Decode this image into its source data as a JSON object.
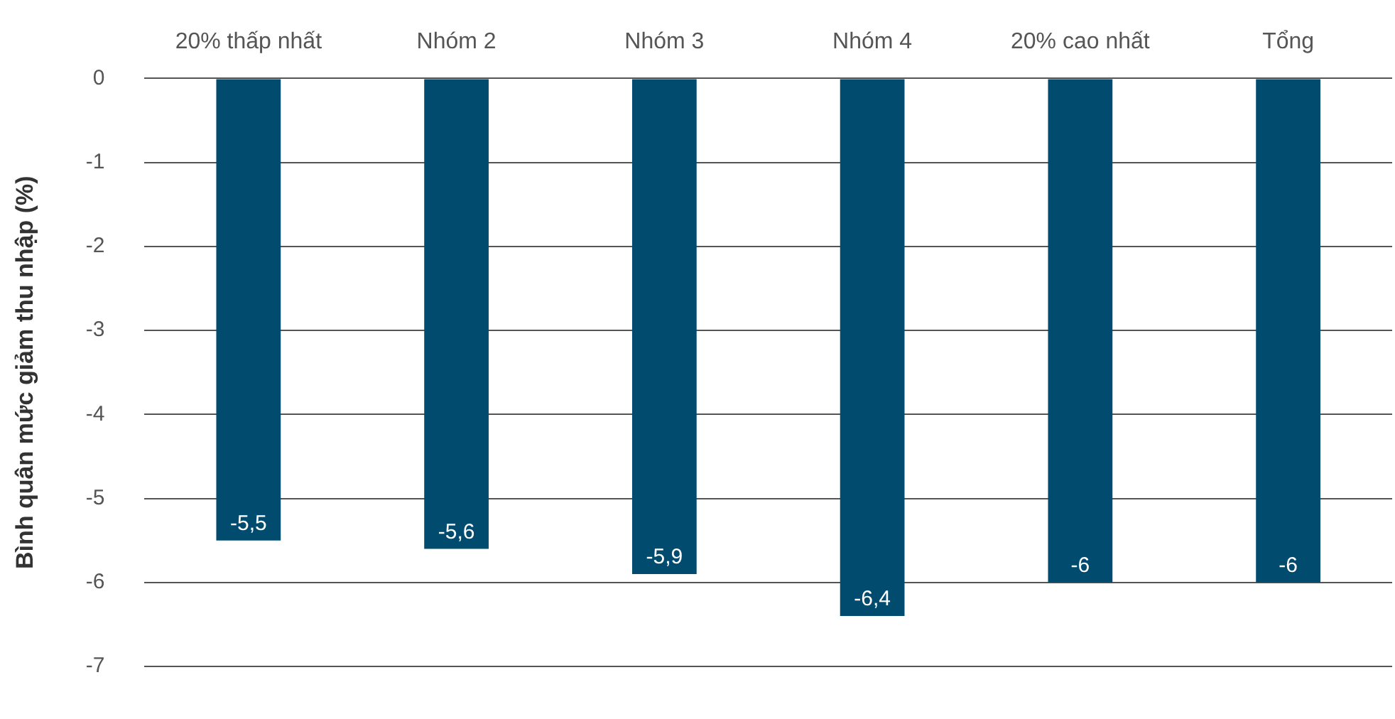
{
  "chart_data": {
    "type": "bar",
    "ylabel": "Bình quân mức giảm thu nhập (%)",
    "categories": [
      "20% thấp nhất",
      "Nhóm 2",
      "Nhóm 3",
      "Nhóm 4",
      "20% cao nhất",
      "Tổng"
    ],
    "values": [
      -5.5,
      -5.6,
      -5.9,
      -6.4,
      -6,
      -6
    ],
    "value_labels": [
      "-5,5",
      "-5,6",
      "-5,9",
      "-6,4",
      "-6",
      "-6"
    ],
    "color": "#004b6e",
    "ylim": [
      -7,
      0
    ],
    "yticks": [
      0,
      -1,
      -2,
      -3,
      -4,
      -5,
      -6,
      -7
    ],
    "grid": "y",
    "legend": false
  }
}
